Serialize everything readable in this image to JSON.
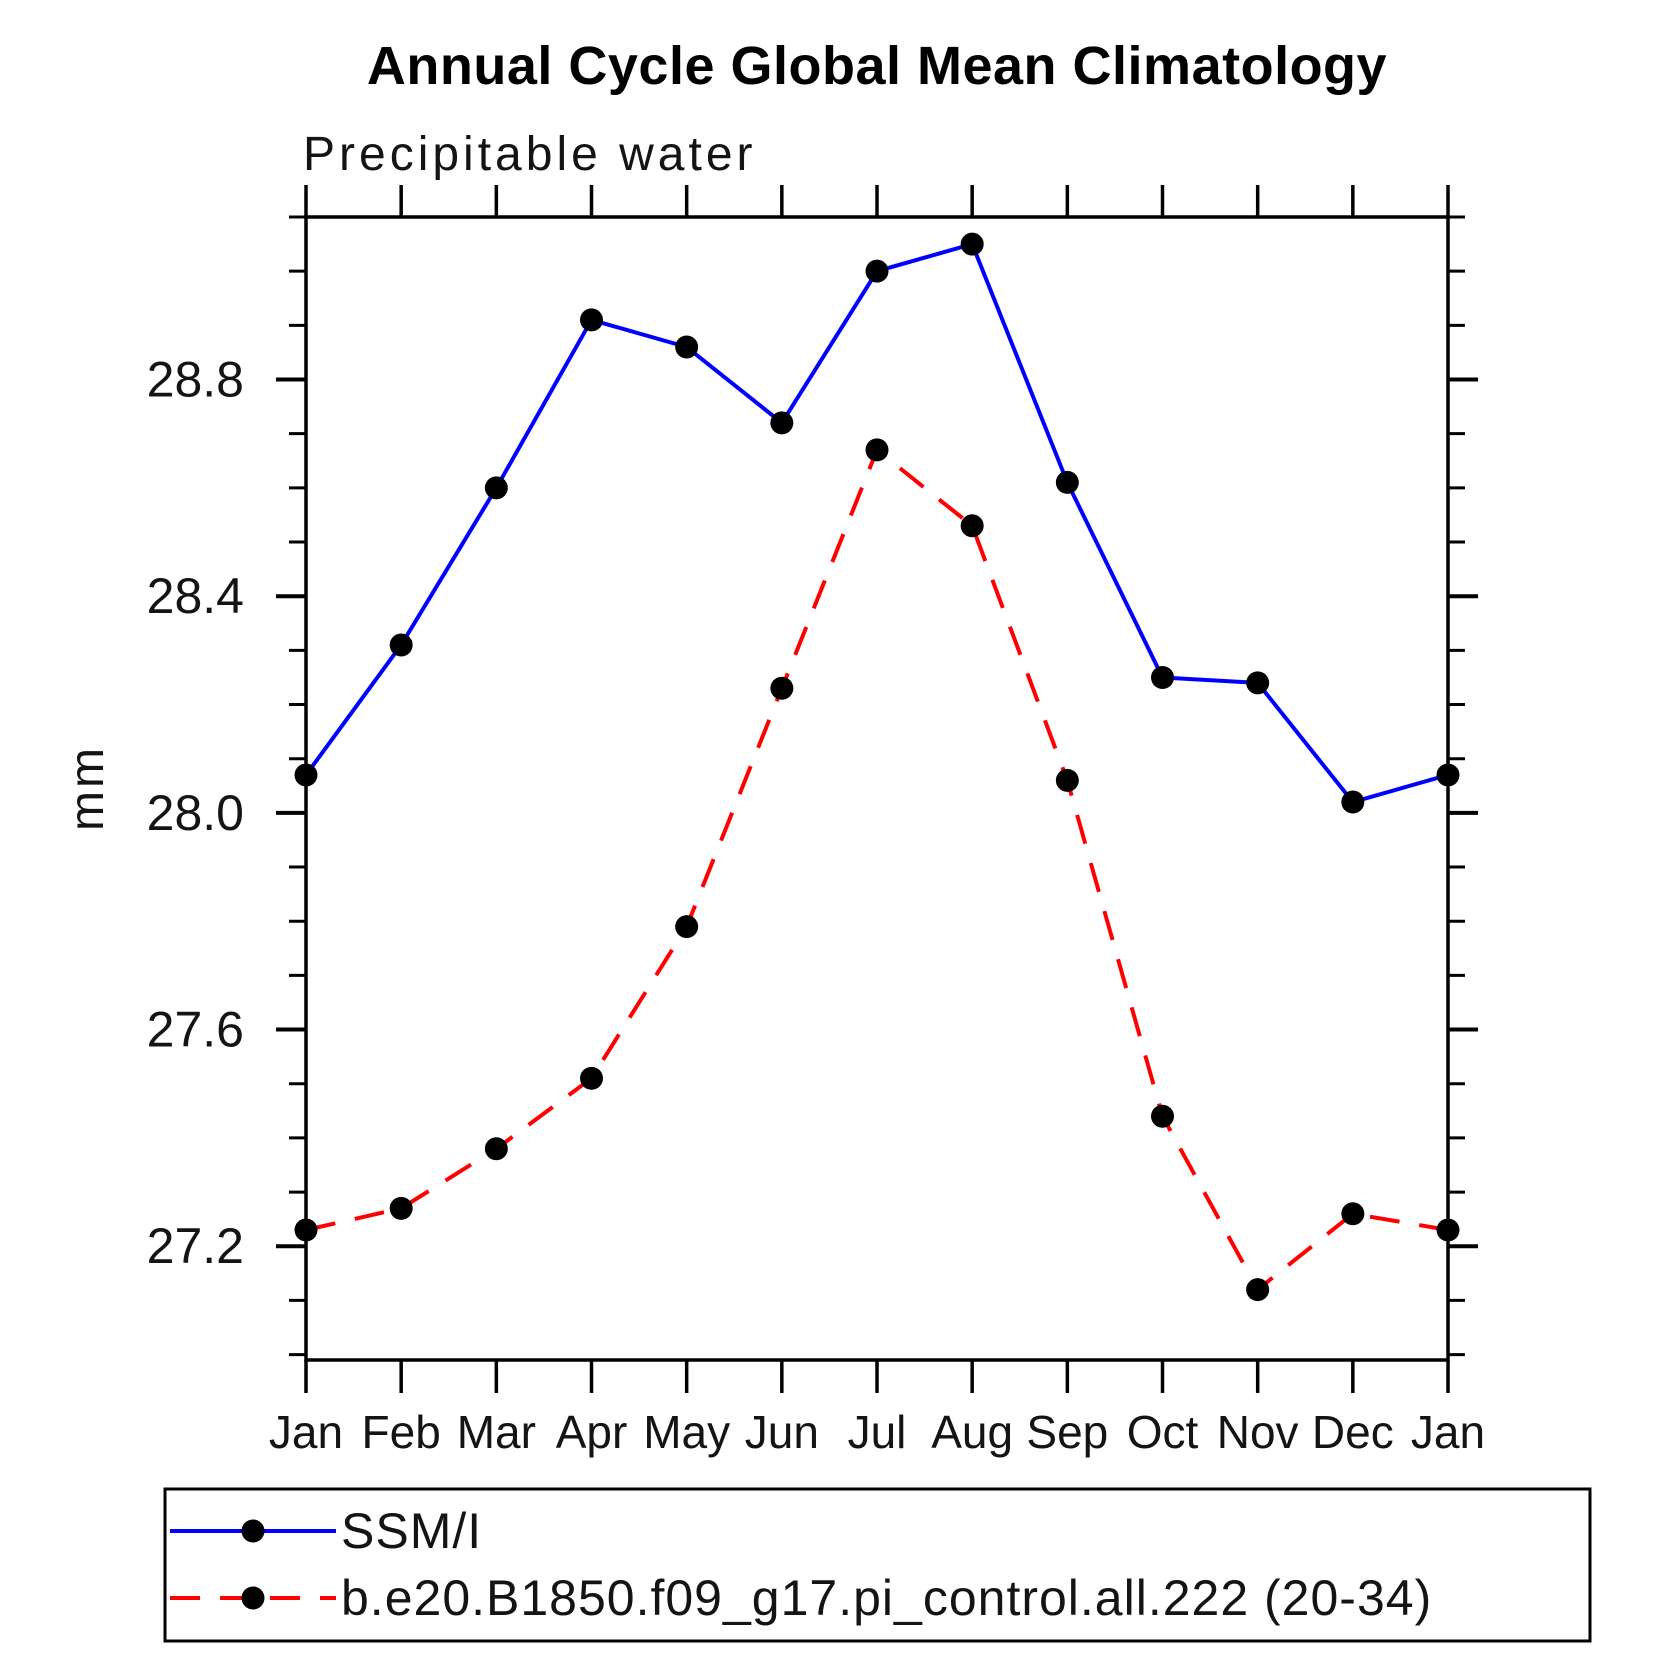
{
  "title": "Annual Cycle Global Mean Climatology",
  "subtitle": "Precipitable water",
  "chart_data": {
    "type": "line",
    "title": "Annual Cycle Global Mean Climatology",
    "subtitle": "Precipitable water",
    "xlabel": "",
    "ylabel": "mm",
    "x_categories": [
      "Jan",
      "Feb",
      "Mar",
      "Apr",
      "May",
      "Jun",
      "Jul",
      "Aug",
      "Sep",
      "Oct",
      "Nov",
      "Dec",
      "Jan"
    ],
    "ylim": [
      26.99,
      29.1
    ],
    "y_major_ticks": [
      27.2,
      27.6,
      28.0,
      28.4,
      28.8
    ],
    "y_tick_labels": [
      "27.2",
      "27.6",
      "28.0",
      "28.4",
      "28.8"
    ],
    "y_minor_step": 0.1,
    "grid": "off",
    "legend_position": "bottom-left",
    "frame_color": "#000000",
    "series": [
      {
        "name": "SSM/I",
        "color": "#0000ff",
        "line_style": "solid",
        "marker": "filled-circle",
        "marker_color": "#000000",
        "values": [
          28.07,
          28.31,
          28.6,
          28.91,
          28.86,
          28.72,
          29.0,
          29.05,
          28.61,
          28.25,
          28.24,
          28.02,
          28.07
        ]
      },
      {
        "name": "b.e20.B1850.f09_g17.pi_control.all.222 (20-34)",
        "color": "#ff0000",
        "line_style": "dashed",
        "marker": "filled-circle",
        "marker_color": "#000000",
        "values": [
          27.23,
          27.27,
          27.38,
          27.51,
          27.79,
          28.23,
          28.67,
          28.53,
          28.06,
          27.44,
          27.12,
          27.26,
          27.23
        ]
      }
    ]
  }
}
